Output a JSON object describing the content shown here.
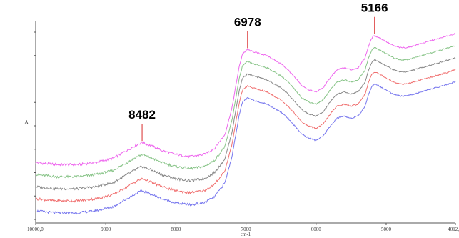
{
  "chart_data": {
    "type": "line",
    "xlabel": "cm-1",
    "ylabel": "A",
    "x_reversed": true,
    "xlim": [
      10000,
      4012
    ],
    "x_ticks": [
      {
        "value": 10000,
        "label": "10000,0"
      },
      {
        "value": 9000,
        "label": "9000"
      },
      {
        "value": 8000,
        "label": "8000"
      },
      {
        "value": 7000,
        "label": "7000"
      },
      {
        "value": 6000,
        "label": "6000"
      },
      {
        "value": 5000,
        "label": "5000"
      },
      {
        "value": 4012,
        "label": "4012,"
      }
    ],
    "ylim": [
      0,
      1
    ],
    "y_tick_count": 9,
    "grid": false,
    "legend": "none",
    "annotations": [
      {
        "x": 8482,
        "label": "8482",
        "color": "#e05050"
      },
      {
        "x": 6978,
        "label": "6978",
        "color": "#e05050"
      },
      {
        "x": 5166,
        "label": "5166",
        "color": "#e05050"
      }
    ],
    "base_x": [
      10000,
      9700,
      9400,
      9150,
      8900,
      8700,
      8550,
      8482,
      8400,
      8200,
      8000,
      7800,
      7600,
      7450,
      7300,
      7200,
      7100,
      7050,
      6978,
      6900,
      6800,
      6700,
      6600,
      6500,
      6400,
      6300,
      6200,
      6100,
      6000,
      5900,
      5800,
      5700,
      5600,
      5500,
      5400,
      5300,
      5250,
      5200,
      5166,
      5100,
      5000,
      4900,
      4800,
      4700,
      4600,
      4500,
      4400,
      4300,
      4200,
      4100,
      4012
    ],
    "base_y": [
      0.06,
      0.05,
      0.05,
      0.06,
      0.08,
      0.12,
      0.15,
      0.16,
      0.15,
      0.12,
      0.1,
      0.09,
      0.1,
      0.13,
      0.2,
      0.33,
      0.53,
      0.6,
      0.62,
      0.61,
      0.6,
      0.59,
      0.57,
      0.55,
      0.52,
      0.48,
      0.44,
      0.42,
      0.41,
      0.43,
      0.48,
      0.52,
      0.53,
      0.52,
      0.53,
      0.58,
      0.64,
      0.68,
      0.69,
      0.68,
      0.66,
      0.64,
      0.63,
      0.63,
      0.64,
      0.65,
      0.66,
      0.67,
      0.68,
      0.69,
      0.7
    ],
    "series": [
      {
        "color": "#ee66ee",
        "offset": 0.24
      },
      {
        "color": "#88c488",
        "offset": 0.18
      },
      {
        "color": "#888888",
        "offset": 0.12
      },
      {
        "color": "#f07070",
        "offset": 0.06
      },
      {
        "color": "#7777ee",
        "offset": 0.0
      }
    ]
  }
}
